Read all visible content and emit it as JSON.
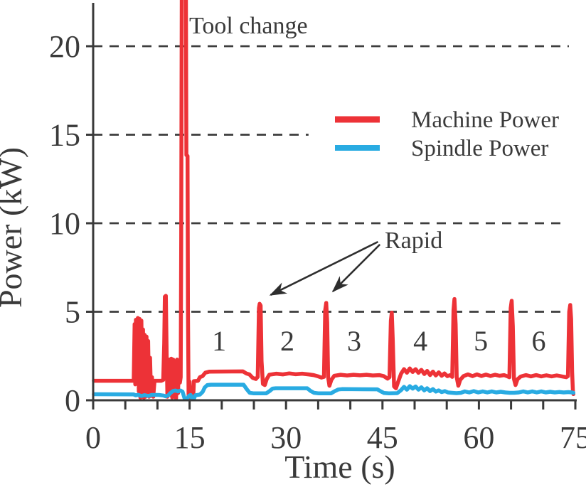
{
  "chart_data": {
    "type": "line",
    "title": "",
    "xlabel": "Time (s)",
    "ylabel": "Power (kW)",
    "xlim": [
      0,
      75
    ],
    "ylim": [
      0,
      22.6
    ],
    "x_ticks": [
      0,
      5,
      10,
      15,
      20,
      25,
      30,
      35,
      40,
      45,
      50,
      55,
      60,
      65,
      70,
      75
    ],
    "x_tick_labels": {
      "0": "0",
      "15": "15",
      "30": "30",
      "45": "45",
      "60": "60",
      "75": "75"
    },
    "y_ticks": [
      0,
      5,
      10,
      15,
      20
    ],
    "y_tick_labels": {
      "0": "0",
      "5": "5",
      "10": "10",
      "15": "15",
      "20": "20"
    },
    "grid": "dashed horizontal",
    "gridlines": [
      {
        "kw": 5,
        "t_end": 73.7
      },
      {
        "kw": 10,
        "t_end": 73.7
      },
      {
        "kw": 15,
        "t_end": 33.5
      },
      {
        "kw": 20,
        "t_end": 74.0
      }
    ],
    "legend_position": "upper right inside",
    "legend": [
      {
        "label": "Machine Power",
        "color": "#ED3237"
      },
      {
        "label": "Spindle Power",
        "color": "#29ABE2"
      }
    ],
    "annotations": {
      "tool_change": {
        "text": "Tool change",
        "t": 14.95,
        "kw": 20.7
      },
      "rapid": {
        "text": "Rapid",
        "t": 45.4,
        "kw": 8.6
      },
      "rapid_arrows": [
        {
          "from": [
            44.3,
            8.95
          ],
          "to": [
            27.6,
            5.95
          ]
        },
        {
          "from": [
            44.6,
            8.8
          ],
          "to": [
            37.3,
            6.15
          ]
        }
      ]
    },
    "segment_labels": [
      {
        "text": "1",
        "t": 19.6,
        "kw": 3.3
      },
      {
        "text": "2",
        "t": 30.2,
        "kw": 3.3
      },
      {
        "text": "3",
        "t": 40.6,
        "kw": 3.3
      },
      {
        "text": "4",
        "t": 50.9,
        "kw": 3.3
      },
      {
        "text": "5",
        "t": 60.3,
        "kw": 3.3
      },
      {
        "text": "6",
        "t": 69.3,
        "kw": 3.3
      }
    ],
    "colors": {
      "axis": "#3a3a3a",
      "grid": "#3d3d3d",
      "text": "#3a3a3a",
      "background": "#ffffff"
    },
    "series": [
      {
        "name": "Machine Power",
        "color": "#ED3237",
        "width": 5.5,
        "points": [
          [
            0.1,
            1.1
          ],
          [
            6.3,
            1.1
          ],
          [
            6.45,
            4.3
          ],
          [
            6.55,
            0.9
          ],
          [
            6.65,
            4.55
          ],
          [
            6.8,
            1.8
          ],
          [
            6.95,
            4.65
          ],
          [
            7.1,
            0.5
          ],
          [
            7.2,
            4.6
          ],
          [
            7.35,
            0.15
          ],
          [
            7.5,
            4.5
          ],
          [
            7.65,
            0.2
          ],
          [
            7.75,
            4.0
          ],
          [
            7.9,
            0.15
          ],
          [
            8.0,
            3.7
          ],
          [
            8.15,
            0.2
          ],
          [
            8.3,
            3.6
          ],
          [
            8.45,
            0.3
          ],
          [
            8.55,
            3.35
          ],
          [
            8.7,
            0.2
          ],
          [
            8.85,
            2.4
          ],
          [
            9.0,
            0.25
          ],
          [
            9.15,
            1.3
          ],
          [
            9.35,
            0.2
          ],
          [
            9.55,
            1.1
          ],
          [
            10.6,
            1.1
          ],
          [
            10.9,
            1.15
          ],
          [
            11.05,
            3.2
          ],
          [
            11.15,
            5.85
          ],
          [
            11.3,
            5.9
          ],
          [
            11.45,
            2.2
          ],
          [
            11.55,
            0.2
          ],
          [
            11.7,
            1.9
          ],
          [
            11.85,
            2.3
          ],
          [
            12.0,
            0.3
          ],
          [
            12.15,
            2.35
          ],
          [
            12.3,
            0.15
          ],
          [
            12.45,
            2.3
          ],
          [
            12.6,
            0.35
          ],
          [
            12.75,
            2.2
          ],
          [
            12.9,
            0.1
          ],
          [
            13.05,
            2.3
          ],
          [
            13.2,
            0.4
          ],
          [
            13.35,
            2.2
          ],
          [
            13.5,
            1.0
          ],
          [
            13.62,
            1.3
          ],
          [
            13.7,
            9.0
          ],
          [
            13.78,
            23.2
          ],
          [
            14.42,
            23.2
          ],
          [
            14.5,
            13.85
          ],
          [
            14.68,
            13.8
          ],
          [
            14.75,
            5.0
          ],
          [
            14.85,
            0.15
          ],
          [
            15.0,
            1.05
          ],
          [
            15.12,
            0.12
          ],
          [
            15.35,
            0.06
          ],
          [
            15.55,
            0.08
          ],
          [
            15.68,
            1.08
          ],
          [
            16.3,
            1.1
          ],
          [
            16.6,
            1.3
          ],
          [
            17.0,
            1.36
          ],
          [
            17.45,
            1.56
          ],
          [
            18.1,
            1.62
          ],
          [
            23.3,
            1.63
          ],
          [
            23.8,
            1.52
          ],
          [
            24.3,
            1.46
          ],
          [
            24.8,
            1.27
          ],
          [
            25.3,
            1.2
          ],
          [
            25.6,
            1.32
          ],
          [
            25.78,
            5.2
          ],
          [
            25.9,
            5.45
          ],
          [
            26.05,
            5.35
          ],
          [
            26.2,
            2.2
          ],
          [
            26.4,
            0.92
          ],
          [
            26.7,
            0.86
          ],
          [
            27.0,
            1.2
          ],
          [
            27.4,
            1.44
          ],
          [
            28.5,
            1.5
          ],
          [
            29.5,
            1.46
          ],
          [
            30.5,
            1.52
          ],
          [
            31.5,
            1.47
          ],
          [
            32.5,
            1.5
          ],
          [
            33.5,
            1.46
          ],
          [
            34.3,
            1.42
          ],
          [
            34.9,
            1.36
          ],
          [
            35.5,
            1.28
          ],
          [
            35.9,
            1.32
          ],
          [
            36.1,
            5.1
          ],
          [
            36.25,
            5.5
          ],
          [
            36.4,
            4.4
          ],
          [
            36.55,
            1.3
          ],
          [
            36.75,
            0.82
          ],
          [
            37.05,
            1.15
          ],
          [
            37.5,
            1.38
          ],
          [
            38.5,
            1.44
          ],
          [
            39.5,
            1.4
          ],
          [
            40.5,
            1.44
          ],
          [
            41.5,
            1.41
          ],
          [
            42.5,
            1.44
          ],
          [
            43.5,
            1.4
          ],
          [
            44.5,
            1.42
          ],
          [
            45.2,
            1.36
          ],
          [
            45.8,
            1.22
          ],
          [
            46.1,
            1.3
          ],
          [
            46.3,
            4.5
          ],
          [
            46.45,
            4.95
          ],
          [
            46.6,
            3.4
          ],
          [
            46.8,
            0.78
          ],
          [
            47.1,
            0.68
          ],
          [
            47.45,
            1.05
          ],
          [
            47.9,
            1.5
          ],
          [
            48.35,
            1.76
          ],
          [
            48.8,
            1.56
          ],
          [
            49.25,
            1.8
          ],
          [
            49.7,
            1.6
          ],
          [
            50.15,
            1.76
          ],
          [
            50.6,
            1.55
          ],
          [
            51.05,
            1.72
          ],
          [
            51.5,
            1.48
          ],
          [
            51.95,
            1.66
          ],
          [
            52.4,
            1.42
          ],
          [
            52.85,
            1.62
          ],
          [
            53.3,
            1.4
          ],
          [
            53.75,
            1.58
          ],
          [
            54.2,
            1.38
          ],
          [
            54.65,
            1.52
          ],
          [
            55.1,
            1.36
          ],
          [
            55.55,
            1.42
          ],
          [
            55.85,
            1.32
          ],
          [
            56.05,
            5.1
          ],
          [
            56.2,
            5.72
          ],
          [
            56.38,
            4.3
          ],
          [
            56.55,
            1.3
          ],
          [
            56.8,
            0.82
          ],
          [
            57.1,
            1.16
          ],
          [
            57.6,
            1.36
          ],
          [
            58.3,
            1.46
          ],
          [
            59.0,
            1.36
          ],
          [
            59.7,
            1.46
          ],
          [
            60.4,
            1.37
          ],
          [
            61.1,
            1.45
          ],
          [
            61.8,
            1.37
          ],
          [
            62.5,
            1.44
          ],
          [
            63.2,
            1.38
          ],
          [
            63.9,
            1.42
          ],
          [
            64.5,
            1.34
          ],
          [
            64.75,
            1.3
          ],
          [
            64.95,
            5.2
          ],
          [
            65.1,
            5.62
          ],
          [
            65.28,
            4.2
          ],
          [
            65.45,
            1.2
          ],
          [
            65.7,
            0.86
          ],
          [
            66.0,
            1.18
          ],
          [
            66.5,
            1.34
          ],
          [
            67.3,
            1.42
          ],
          [
            68.1,
            1.35
          ],
          [
            68.9,
            1.42
          ],
          [
            69.7,
            1.35
          ],
          [
            70.5,
            1.41
          ],
          [
            71.3,
            1.35
          ],
          [
            72.1,
            1.4
          ],
          [
            72.9,
            1.35
          ],
          [
            73.6,
            1.3
          ],
          [
            73.85,
            1.36
          ],
          [
            74.05,
            5.0
          ],
          [
            74.2,
            5.38
          ],
          [
            74.35,
            4.6
          ],
          [
            74.5,
            1.6
          ],
          [
            74.62,
            0.5
          ],
          [
            74.7,
            0.35
          ]
        ]
      },
      {
        "name": "Spindle Power",
        "color": "#29ABE2",
        "width": 5.5,
        "points": [
          [
            0.1,
            0.34
          ],
          [
            6.3,
            0.33
          ],
          [
            6.6,
            0.28
          ],
          [
            7.0,
            0.31
          ],
          [
            7.5,
            0.24
          ],
          [
            8.0,
            0.29
          ],
          [
            8.6,
            0.24
          ],
          [
            9.1,
            0.3
          ],
          [
            10.2,
            0.3
          ],
          [
            10.9,
            0.27
          ],
          [
            11.3,
            0.22
          ],
          [
            11.7,
            0.28
          ],
          [
            12.0,
            0.4
          ],
          [
            12.4,
            0.52
          ],
          [
            12.8,
            0.55
          ],
          [
            13.2,
            0.5
          ],
          [
            13.6,
            0.55
          ],
          [
            13.9,
            0.48
          ],
          [
            14.2,
            0.12
          ],
          [
            14.55,
            0.05
          ],
          [
            14.9,
            0.25
          ],
          [
            15.15,
            0.3
          ],
          [
            15.4,
            0.1
          ],
          [
            15.65,
            0.06
          ],
          [
            15.9,
            0.28
          ],
          [
            16.6,
            0.32
          ],
          [
            17.05,
            0.48
          ],
          [
            17.35,
            0.72
          ],
          [
            17.75,
            0.86
          ],
          [
            18.3,
            0.88
          ],
          [
            23.4,
            0.88
          ],
          [
            23.9,
            0.62
          ],
          [
            24.35,
            0.42
          ],
          [
            25.0,
            0.39
          ],
          [
            26.9,
            0.39
          ],
          [
            27.45,
            0.52
          ],
          [
            27.9,
            0.66
          ],
          [
            28.4,
            0.68
          ],
          [
            33.3,
            0.68
          ],
          [
            33.85,
            0.52
          ],
          [
            34.35,
            0.42
          ],
          [
            35.1,
            0.39
          ],
          [
            37.0,
            0.39
          ],
          [
            37.6,
            0.52
          ],
          [
            38.15,
            0.61
          ],
          [
            38.7,
            0.63
          ],
          [
            44.2,
            0.62
          ],
          [
            44.75,
            0.5
          ],
          [
            45.25,
            0.41
          ],
          [
            46.0,
            0.39
          ],
          [
            47.3,
            0.4
          ],
          [
            47.85,
            0.56
          ],
          [
            48.35,
            0.76
          ],
          [
            48.8,
            0.6
          ],
          [
            49.25,
            0.8
          ],
          [
            49.7,
            0.66
          ],
          [
            50.15,
            0.78
          ],
          [
            50.6,
            0.6
          ],
          [
            51.05,
            0.73
          ],
          [
            51.5,
            0.56
          ],
          [
            51.95,
            0.68
          ],
          [
            52.4,
            0.52
          ],
          [
            52.85,
            0.63
          ],
          [
            53.3,
            0.49
          ],
          [
            53.75,
            0.56
          ],
          [
            54.2,
            0.46
          ],
          [
            54.7,
            0.52
          ],
          [
            55.2,
            0.44
          ],
          [
            55.8,
            0.42
          ],
          [
            56.5,
            0.4
          ],
          [
            57.2,
            0.42
          ],
          [
            57.8,
            0.5
          ],
          [
            58.5,
            0.44
          ],
          [
            59.2,
            0.52
          ],
          [
            59.9,
            0.44
          ],
          [
            60.6,
            0.5
          ],
          [
            61.3,
            0.44
          ],
          [
            62.0,
            0.5
          ],
          [
            62.7,
            0.44
          ],
          [
            63.4,
            0.48
          ],
          [
            64.1,
            0.44
          ],
          [
            64.8,
            0.42
          ],
          [
            65.5,
            0.42
          ],
          [
            66.2,
            0.44
          ],
          [
            66.9,
            0.5
          ],
          [
            67.6,
            0.44
          ],
          [
            68.3,
            0.5
          ],
          [
            69.0,
            0.44
          ],
          [
            69.7,
            0.5
          ],
          [
            70.4,
            0.44
          ],
          [
            71.1,
            0.48
          ],
          [
            71.8,
            0.44
          ],
          [
            72.5,
            0.47
          ],
          [
            73.2,
            0.44
          ],
          [
            73.9,
            0.46
          ],
          [
            74.5,
            0.44
          ],
          [
            74.7,
            0.42
          ]
        ]
      }
    ]
  }
}
